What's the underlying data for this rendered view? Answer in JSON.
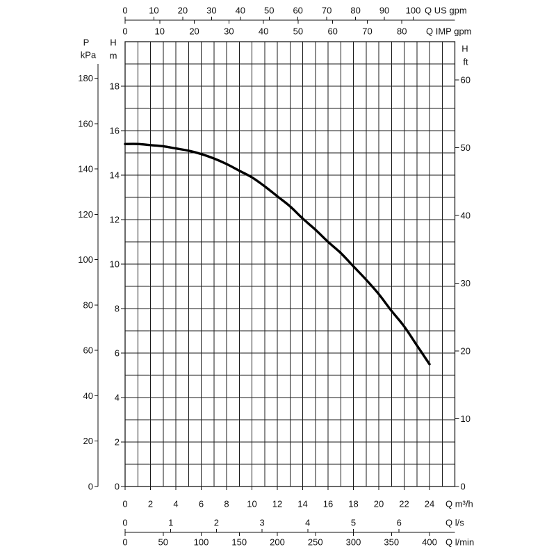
{
  "chart_data": {
    "type": "line",
    "grid": true,
    "line_color": "#000000",
    "grid_color": "#1a1a1a",
    "x": {
      "label": "Q m³/h",
      "range": [
        0,
        26
      ],
      "grid_step": 1,
      "ticks": [
        0,
        2,
        4,
        6,
        8,
        10,
        12,
        14,
        16,
        18,
        20,
        22,
        24
      ]
    },
    "y": {
      "symbol": "H",
      "unit": "m",
      "range": [
        0,
        20
      ],
      "grid_step": 1,
      "ticks": [
        0,
        2,
        4,
        6,
        8,
        10,
        12,
        14,
        16,
        18
      ]
    },
    "x_secondary": [
      {
        "position": "top",
        "label": "Q US gpm",
        "ticks": [
          0,
          10,
          20,
          30,
          40,
          50,
          60,
          70,
          80,
          90,
          100
        ]
      },
      {
        "position": "top",
        "label": "Q IMP gpm",
        "ticks": [
          0,
          10,
          20,
          30,
          40,
          50,
          60,
          70,
          80
        ]
      },
      {
        "position": "bottom",
        "label": "Q l/s",
        "ticks": [
          0,
          1,
          2,
          3,
          4,
          5,
          6
        ]
      },
      {
        "position": "bottom",
        "label": "Q l/min",
        "ticks": [
          0,
          50,
          100,
          150,
          200,
          250,
          300,
          350,
          400
        ]
      }
    ],
    "y_secondary": [
      {
        "position": "left",
        "symbol": "P",
        "unit": "kPa",
        "ticks": [
          0,
          20,
          40,
          60,
          80,
          100,
          120,
          140,
          160,
          180
        ]
      },
      {
        "position": "right",
        "symbol": "H",
        "unit": "ft",
        "ticks": [
          0,
          10,
          20,
          30,
          40,
          50,
          60
        ]
      }
    ],
    "series": [
      {
        "x": [
          0,
          1,
          2,
          3,
          4,
          5,
          6,
          7,
          8,
          9,
          10,
          11,
          12,
          13,
          14,
          15,
          16,
          17,
          18,
          19,
          20,
          21,
          22,
          23,
          24
        ],
        "y": [
          15.4,
          15.4,
          15.35,
          15.3,
          15.2,
          15.1,
          14.95,
          14.75,
          14.5,
          14.2,
          13.9,
          13.5,
          13.05,
          12.6,
          12.05,
          11.55,
          11.0,
          10.5,
          9.9,
          9.3,
          8.65,
          7.9,
          7.2,
          6.35,
          5.5
        ]
      }
    ]
  }
}
